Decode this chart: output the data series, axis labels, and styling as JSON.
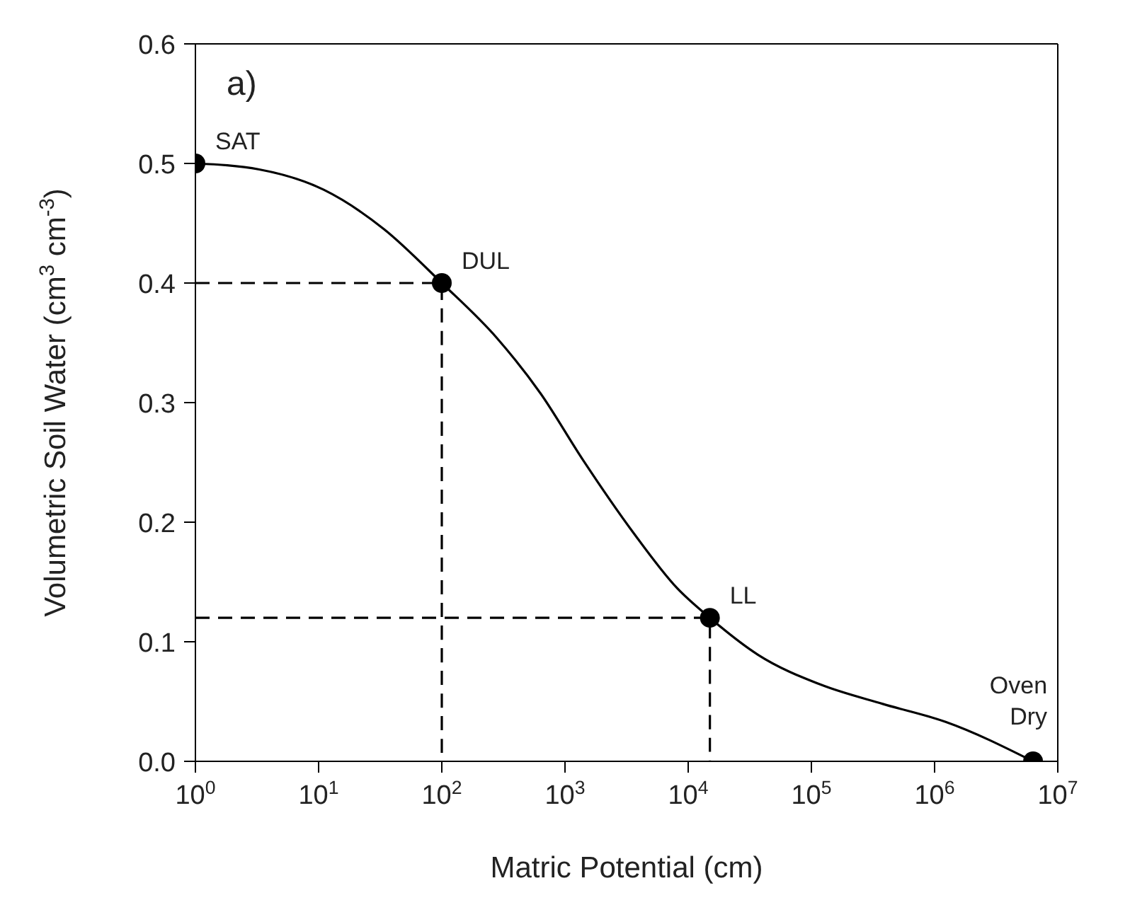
{
  "chart_data": {
    "type": "line",
    "xlabel": "Matric Potential (cm)",
    "ylabel": "Volumetric Soil Water (cm$^{3}$ cm$^{-3}$)",
    "log": "x",
    "xlim": [
      1,
      10000000
    ],
    "ylim": [
      0,
      0.6
    ],
    "xticks": [
      {
        "value": 1,
        "label": "10$^{0}$"
      },
      {
        "value": 10,
        "label": "10$^{1}$"
      },
      {
        "value": 100,
        "label": "10$^{2}$"
      },
      {
        "value": 1000,
        "label": "10$^{3}$"
      },
      {
        "value": 10000,
        "label": "10$^{4}$"
      },
      {
        "value": 100000,
        "label": "10$^{5}$"
      },
      {
        "value": 1000000,
        "label": "10$^{6}$"
      },
      {
        "value": 10000000,
        "label": "10$^{7}$"
      }
    ],
    "yticks": [
      {
        "value": 0,
        "label": "0.0"
      },
      {
        "value": 0.1,
        "label": "0.1"
      },
      {
        "value": 0.2,
        "label": "0.2"
      },
      {
        "value": 0.3,
        "label": "0.3"
      },
      {
        "value": 0.4,
        "label": "0.4"
      },
      {
        "value": 0.5,
        "label": "0.5"
      },
      {
        "value": 0.6,
        "label": "0.6"
      }
    ],
    "grid": false,
    "legend": false,
    "series": [
      {
        "color": "#000000",
        "line_style": "solid",
        "marker": "none",
        "x": [
          1,
          3.3,
          11,
          34,
          100,
          280,
          630,
          1400,
          3600,
          8100,
          15000,
          37000,
          120000,
          380000,
          1230000,
          6300000
        ],
        "values": [
          0.5,
          0.495,
          0.478,
          0.445,
          0.4,
          0.354,
          0.308,
          0.252,
          0.191,
          0.145,
          0.12,
          0.089,
          0.064,
          0.048,
          0.033,
          0
        ]
      },
      {
        "type": "line",
        "color": "#000000",
        "line_style": "dashed",
        "marker": "none",
        "x": [
          1,
          100,
          100
        ],
        "values": [
          0.4,
          0.4,
          0
        ]
      },
      {
        "type": "line",
        "color": "#000000",
        "line_style": "dashed",
        "marker": "none",
        "x": [
          1,
          15000,
          15000
        ],
        "values": [
          0.12,
          0.12,
          0
        ]
      },
      {
        "type": "scatter",
        "color": "#000000",
        "marker": "circle",
        "x": [
          1,
          100,
          15000,
          6300000
        ],
        "values": [
          0.5,
          0.4,
          0.12,
          0
        ]
      }
    ],
    "annotations": [
      "a)",
      {
        "text": "SAT",
        "x": 1,
        "y": 0.5
      },
      {
        "text": "DUL",
        "x": 100,
        "y": 0.4
      },
      {
        "text": "LL",
        "x": 15000,
        "y": 0.12
      },
      {
        "text": "Oven Dry",
        "x": 6300000,
        "y": 0
      }
    ]
  }
}
